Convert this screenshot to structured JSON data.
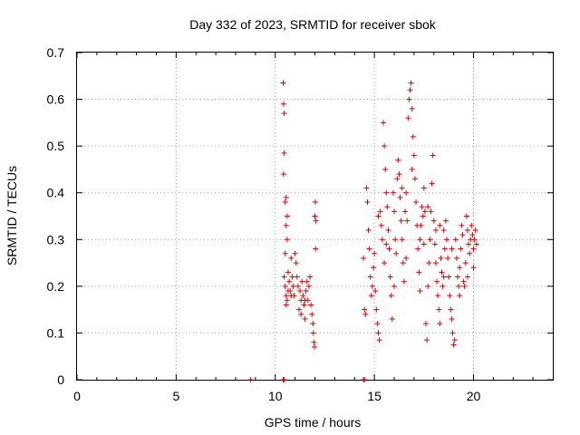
{
  "chart_data": {
    "type": "scatter",
    "title": "Day 332 of 2023, SRMTID for receiver sbok",
    "xlabel": "GPS time / hours",
    "ylabel": "SRMTID / TECUs",
    "xlim": [
      0,
      24
    ],
    "ylim": [
      0,
      0.7
    ],
    "x_ticks": [
      "0",
      "5",
      "10",
      "15",
      "20"
    ],
    "y_ticks": [
      "0",
      "0.1",
      "0.2",
      "0.3",
      "0.4",
      "0.5",
      "0.6",
      "0.7"
    ],
    "grid": true,
    "legend": "none",
    "marker": "+",
    "color": "#e00000",
    "series": [
      {
        "points": [
          [
            8.75,
            0.0
          ],
          [
            10.4,
            0.0
          ],
          [
            10.45,
            0.0
          ],
          [
            14.45,
            0.0
          ],
          [
            14.5,
            0.0
          ],
          [
            10.4,
            0.635
          ],
          [
            10.42,
            0.59
          ],
          [
            10.45,
            0.57
          ],
          [
            10.45,
            0.485
          ],
          [
            10.42,
            0.44
          ],
          [
            10.5,
            0.38
          ],
          [
            10.55,
            0.39
          ],
          [
            10.6,
            0.35
          ],
          [
            10.55,
            0.33
          ],
          [
            10.6,
            0.3
          ],
          [
            10.5,
            0.27
          ],
          [
            10.45,
            0.22
          ],
          [
            10.5,
            0.2
          ],
          [
            10.55,
            0.18
          ],
          [
            10.6,
            0.17
          ],
          [
            10.65,
            0.23
          ],
          [
            10.7,
            0.21
          ],
          [
            10.75,
            0.19
          ],
          [
            10.8,
            0.26
          ],
          [
            10.85,
            0.22
          ],
          [
            10.9,
            0.2
          ],
          [
            10.95,
            0.18
          ],
          [
            11.0,
            0.27
          ],
          [
            11.05,
            0.25
          ],
          [
            11.1,
            0.22
          ],
          [
            11.15,
            0.2
          ],
          [
            11.2,
            0.15
          ],
          [
            11.25,
            0.19
          ],
          [
            11.3,
            0.17
          ],
          [
            11.35,
            0.21
          ],
          [
            11.4,
            0.18
          ],
          [
            11.45,
            0.16
          ],
          [
            11.5,
            0.13
          ],
          [
            11.55,
            0.19
          ],
          [
            11.6,
            0.21
          ],
          [
            11.65,
            0.17
          ],
          [
            11.7,
            0.2
          ],
          [
            11.75,
            0.22
          ],
          [
            11.8,
            0.16
          ],
          [
            11.85,
            0.14
          ],
          [
            11.9,
            0.12
          ],
          [
            11.92,
            0.1
          ],
          [
            11.95,
            0.08
          ],
          [
            11.98,
            0.07
          ],
          [
            12.0,
            0.35
          ],
          [
            12.02,
            0.38
          ],
          [
            12.05,
            0.34
          ],
          [
            12.03,
            0.28
          ],
          [
            10.55,
            0.16
          ],
          [
            10.65,
            0.19
          ],
          [
            10.8,
            0.18
          ],
          [
            11.3,
            0.14
          ],
          [
            11.5,
            0.17
          ],
          [
            14.45,
            0.26
          ],
          [
            14.5,
            0.15
          ],
          [
            14.55,
            0.14
          ],
          [
            14.6,
            0.41
          ],
          [
            14.65,
            0.38
          ],
          [
            14.7,
            0.32
          ],
          [
            14.75,
            0.28
          ],
          [
            14.8,
            0.22
          ],
          [
            14.85,
            0.18
          ],
          [
            14.9,
            0.2
          ],
          [
            14.95,
            0.24
          ],
          [
            15.0,
            0.27
          ],
          [
            15.05,
            0.19
          ],
          [
            15.1,
            0.15
          ],
          [
            15.15,
            0.12
          ],
          [
            15.2,
            0.1
          ],
          [
            15.25,
            0.085
          ],
          [
            15.3,
            0.36
          ],
          [
            15.35,
            0.33
          ],
          [
            15.4,
            0.3
          ],
          [
            15.45,
            0.55
          ],
          [
            15.5,
            0.5
          ],
          [
            15.55,
            0.45
          ],
          [
            15.6,
            0.4
          ],
          [
            15.65,
            0.37
          ],
          [
            15.7,
            0.32
          ],
          [
            15.75,
            0.28
          ],
          [
            15.8,
            0.22
          ],
          [
            15.85,
            0.18
          ],
          [
            15.9,
            0.13
          ],
          [
            15.95,
            0.4
          ],
          [
            16.0,
            0.36
          ],
          [
            16.05,
            0.3
          ],
          [
            16.1,
            0.27
          ],
          [
            16.15,
            0.43
          ],
          [
            16.2,
            0.47
          ],
          [
            16.25,
            0.44
          ],
          [
            16.3,
            0.39
          ],
          [
            16.35,
            0.34
          ],
          [
            16.4,
            0.3
          ],
          [
            16.45,
            0.25
          ],
          [
            16.5,
            0.21
          ],
          [
            16.55,
            0.36
          ],
          [
            16.6,
            0.4
          ],
          [
            16.65,
            0.34
          ],
          [
            16.7,
            0.56
          ],
          [
            16.75,
            0.6
          ],
          [
            16.8,
            0.62
          ],
          [
            16.85,
            0.635
          ],
          [
            16.9,
            0.58
          ],
          [
            16.95,
            0.52
          ],
          [
            17.0,
            0.48
          ],
          [
            17.05,
            0.43
          ],
          [
            17.1,
            0.38
          ],
          [
            17.15,
            0.33
          ],
          [
            17.2,
            0.28
          ],
          [
            17.25,
            0.23
          ],
          [
            17.3,
            0.19
          ],
          [
            17.35,
            0.33
          ],
          [
            17.4,
            0.37
          ],
          [
            17.45,
            0.35
          ],
          [
            17.5,
            0.41
          ],
          [
            17.55,
            0.36
          ],
          [
            17.6,
            0.12
          ],
          [
            17.65,
            0.085
          ],
          [
            17.7,
            0.2
          ],
          [
            17.75,
            0.25
          ],
          [
            17.8,
            0.3
          ],
          [
            17.85,
            0.36
          ],
          [
            17.9,
            0.42
          ],
          [
            17.95,
            0.48
          ],
          [
            18.0,
            0.34
          ],
          [
            18.05,
            0.29
          ],
          [
            18.1,
            0.25
          ],
          [
            18.15,
            0.21
          ],
          [
            18.2,
            0.18
          ],
          [
            18.25,
            0.15
          ],
          [
            18.3,
            0.12
          ],
          [
            18.35,
            0.26
          ],
          [
            18.4,
            0.23
          ],
          [
            18.45,
            0.2
          ],
          [
            18.5,
            0.32
          ],
          [
            18.55,
            0.28
          ],
          [
            18.6,
            0.34
          ],
          [
            18.65,
            0.3
          ],
          [
            18.7,
            0.26
          ],
          [
            18.75,
            0.22
          ],
          [
            18.8,
            0.18
          ],
          [
            18.85,
            0.15
          ],
          [
            18.9,
            0.13
          ],
          [
            18.95,
            0.1
          ],
          [
            19.0,
            0.075
          ],
          [
            19.05,
            0.085
          ],
          [
            19.1,
            0.3
          ],
          [
            19.15,
            0.26
          ],
          [
            19.2,
            0.22
          ],
          [
            19.25,
            0.2
          ],
          [
            19.3,
            0.24
          ],
          [
            19.35,
            0.28
          ],
          [
            19.4,
            0.33
          ],
          [
            19.45,
            0.31
          ],
          [
            19.5,
            0.21
          ],
          [
            19.55,
            0.2
          ],
          [
            19.6,
            0.25
          ],
          [
            19.65,
            0.35
          ],
          [
            19.7,
            0.32
          ],
          [
            19.75,
            0.29
          ],
          [
            19.8,
            0.27
          ],
          [
            19.85,
            0.3
          ],
          [
            19.9,
            0.33
          ],
          [
            19.95,
            0.31
          ],
          [
            20.0,
            0.28
          ],
          [
            20.05,
            0.3
          ],
          [
            20.1,
            0.32
          ],
          [
            20.15,
            0.29
          ],
          [
            15.2,
            0.35
          ],
          [
            15.6,
            0.29
          ],
          [
            16.0,
            0.2
          ],
          [
            16.4,
            0.41
          ],
          [
            16.9,
            0.45
          ],
          [
            17.3,
            0.3
          ],
          [
            17.7,
            0.37
          ],
          [
            18.1,
            0.32
          ],
          [
            18.5,
            0.22
          ],
          [
            18.9,
            0.28
          ],
          [
            19.3,
            0.18
          ],
          [
            19.7,
            0.22
          ],
          [
            20.0,
            0.24
          ],
          [
            15.5,
            0.25
          ],
          [
            16.6,
            0.26
          ],
          [
            17.5,
            0.29
          ],
          [
            18.3,
            0.33
          ]
        ]
      }
    ]
  }
}
